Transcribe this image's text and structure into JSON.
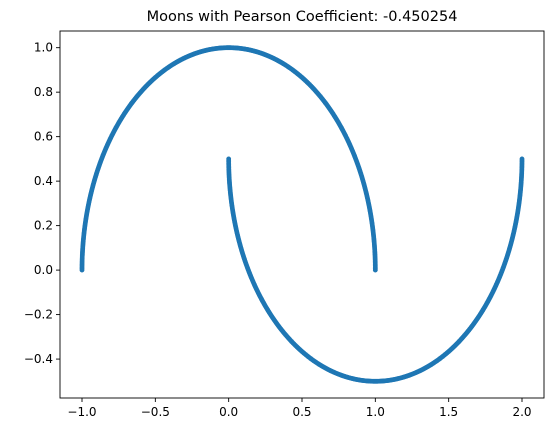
{
  "chart_data": {
    "type": "scatter",
    "title": "Moons with Pearson Coefficient: -0.450254",
    "xlabel": "",
    "ylabel": "",
    "xlim": [
      -1.15,
      2.15
    ],
    "ylim": [
      -0.575,
      1.075
    ],
    "xticks": [
      -1.0,
      -0.5,
      0.0,
      0.5,
      1.0,
      1.5,
      2.0
    ],
    "xtick_labels": [
      "−1.0",
      "−0.5",
      "0.0",
      "0.5",
      "1.0",
      "1.5",
      "2.0"
    ],
    "yticks": [
      -0.4,
      -0.2,
      0.0,
      0.2,
      0.4,
      0.6,
      0.8,
      1.0
    ],
    "ytick_labels": [
      "−0.4",
      "−0.2",
      "0.0",
      "0.2",
      "0.4",
      "0.6",
      "0.8",
      "1.0"
    ],
    "grid": false,
    "series": [
      {
        "color": "#1f77b4",
        "description_points": "upper moon: x=cos(t), y=sin(t), t in [0, pi]",
        "x": [
          1.0,
          0.966,
          0.866,
          0.707,
          0.5,
          0.259,
          0.0,
          -0.259,
          -0.5,
          -0.707,
          -0.866,
          -0.966,
          -1.0
        ],
        "y": [
          0.0,
          0.259,
          0.5,
          0.707,
          0.866,
          0.966,
          1.0,
          0.966,
          0.866,
          0.707,
          0.5,
          0.259,
          0.0
        ]
      },
      {
        "color": "#1f77b4",
        "x": [
          0.0,
          0.034,
          0.134,
          0.293,
          0.5,
          0.741,
          1.0,
          1.259,
          1.5,
          1.707,
          1.866,
          1.966,
          2.0
        ],
        "y": [
          0.5,
          0.241,
          0.0,
          -0.207,
          -0.366,
          -0.466,
          -0.5,
          -0.466,
          -0.366,
          -0.207,
          0.0,
          0.241,
          0.5
        ]
      }
    ]
  }
}
